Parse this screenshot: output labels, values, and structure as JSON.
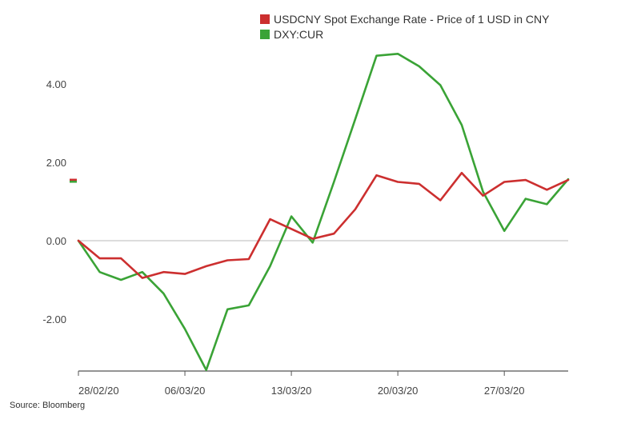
{
  "chart_data": {
    "type": "line",
    "title": "",
    "xlabel": "",
    "ylabel": "",
    "x": [
      "28/02/20",
      "02/03/20",
      "03/03/20",
      "04/03/20",
      "05/03/20",
      "06/03/20",
      "09/03/20",
      "10/03/20",
      "11/03/20",
      "12/03/20",
      "13/03/20",
      "16/03/20",
      "17/03/20",
      "18/03/20",
      "19/03/20",
      "20/03/20",
      "23/03/20",
      "24/03/20",
      "25/03/20",
      "26/03/20",
      "27/03/20",
      "30/03/20",
      "31/03/20",
      "01/04/20"
    ],
    "x_ticks": [
      "28/02/20",
      "06/03/20",
      "13/03/20",
      "20/03/20",
      "27/03/20"
    ],
    "x_tick_indices": [
      0,
      5,
      10,
      15,
      20
    ],
    "y_ticks": [
      "4.00",
      "2.00",
      "0.00",
      "-2.00"
    ],
    "y_tick_values": [
      4,
      2,
      0,
      -2
    ],
    "ylim": [
      -3.3,
      5.0
    ],
    "grid": "zero-line-only",
    "legend_placement": "top-center",
    "last_value_marker": 1.53,
    "series": [
      {
        "name": "USDCNY Spot Exchange Rate - Price of 1 USD in CNY",
        "color": "#cc2f2f",
        "values": [
          0,
          -0.45,
          -0.45,
          -0.95,
          -0.8,
          -0.85,
          -0.65,
          -0.5,
          -0.47,
          0.55,
          0.3,
          0.05,
          0.18,
          0.8,
          1.67,
          1.5,
          1.45,
          1.03,
          1.73,
          1.15,
          1.5,
          1.55,
          1.3,
          1.55
        ]
      },
      {
        "name": "DXY:CUR",
        "color": "#3aa336",
        "values": [
          0,
          -0.8,
          -1.0,
          -0.8,
          -1.35,
          -2.25,
          -3.3,
          -1.75,
          -1.65,
          -0.65,
          0.62,
          -0.05,
          1.5,
          3.1,
          4.72,
          4.77,
          4.45,
          3.97,
          2.95,
          1.25,
          0.25,
          1.07,
          0.93,
          1.57
        ]
      }
    ]
  },
  "source": "Source: Bloomberg"
}
